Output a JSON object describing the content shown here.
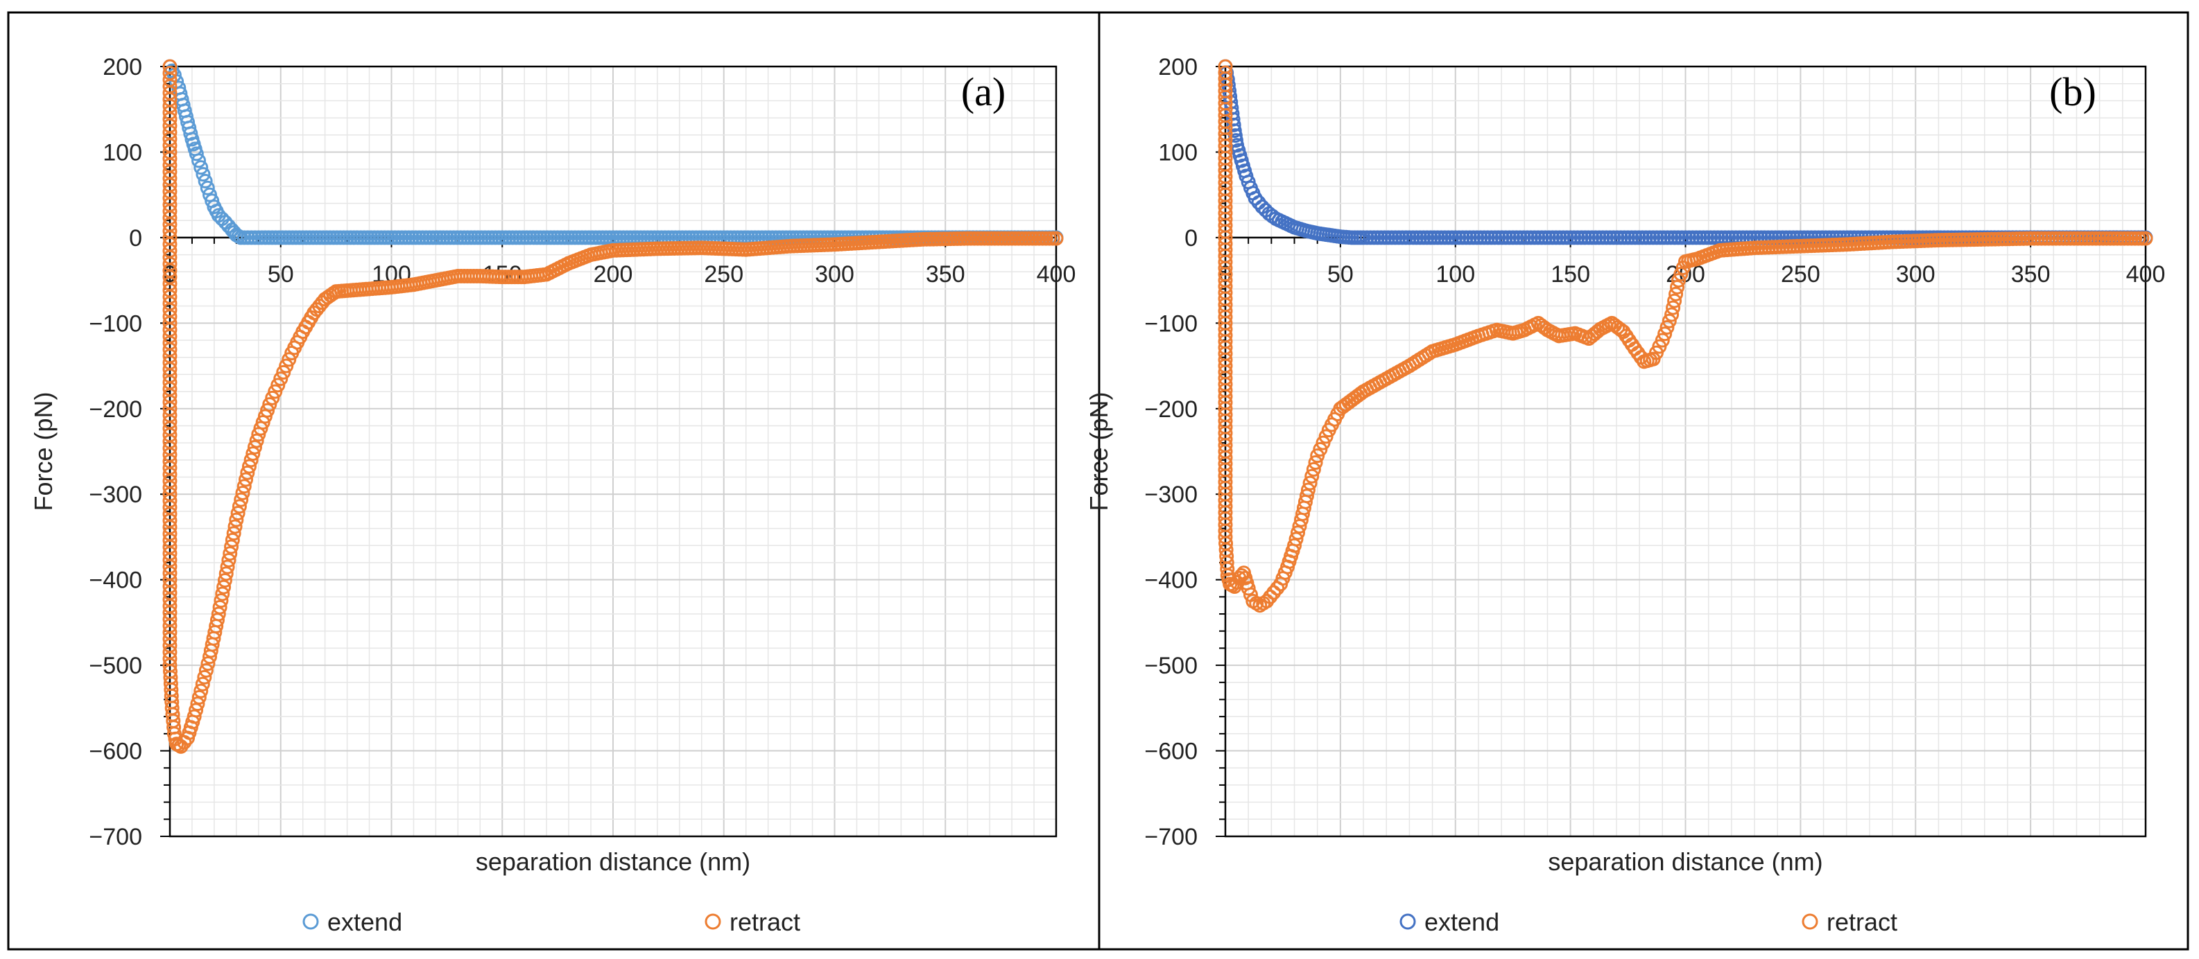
{
  "chart_data": [
    {
      "type": "scatter",
      "panel_label": "(a)",
      "title": "",
      "xlabel": "separation distance (nm)",
      "ylabel": "Force (pN)",
      "xlim": [
        0,
        400
      ],
      "ylim": [
        -700,
        200
      ],
      "x_ticks": [
        "0",
        "50",
        "100",
        "150",
        "200",
        "250",
        "300",
        "350",
        "400"
      ],
      "y_ticks": [
        "200",
        "100",
        "0",
        "−100",
        "−200",
        "−300",
        "−400",
        "−500",
        "−600",
        "−700"
      ],
      "grid": true,
      "legend_position": "bottom",
      "series": [
        {
          "name": "extend",
          "color": "#5b9bd5",
          "points": [
            [
              0,
              200
            ],
            [
              2,
              190
            ],
            [
              4,
              175
            ],
            [
              6,
              155
            ],
            [
              8,
              135
            ],
            [
              10,
              115
            ],
            [
              12,
              98
            ],
            [
              14,
              82
            ],
            [
              16,
              66
            ],
            [
              18,
              50
            ],
            [
              20,
              36
            ],
            [
              22,
              26
            ],
            [
              25,
              18
            ],
            [
              28,
              9
            ],
            [
              30,
              3
            ],
            [
              32,
              0
            ],
            [
              40,
              0
            ],
            [
              60,
              0
            ],
            [
              80,
              0
            ],
            [
              100,
              0
            ],
            [
              150,
              0
            ],
            [
              200,
              0
            ],
            [
              250,
              0
            ],
            [
              300,
              0
            ],
            [
              350,
              0
            ],
            [
              400,
              0
            ]
          ]
        },
        {
          "name": "retract",
          "color": "#ed7d31",
          "points": [
            [
              0,
              200
            ],
            [
              0,
              100
            ],
            [
              0,
              0
            ],
            [
              0,
              -100
            ],
            [
              0,
              -200
            ],
            [
              0,
              -300
            ],
            [
              0,
              -400
            ],
            [
              0,
              -500
            ],
            [
              1,
              -550
            ],
            [
              2,
              -580
            ],
            [
              3,
              -592
            ],
            [
              5,
              -595
            ],
            [
              8,
              -585
            ],
            [
              11,
              -560
            ],
            [
              14,
              -530
            ],
            [
              18,
              -490
            ],
            [
              22,
              -440
            ],
            [
              26,
              -385
            ],
            [
              30,
              -330
            ],
            [
              35,
              -275
            ],
            [
              40,
              -230
            ],
            [
              45,
              -195
            ],
            [
              50,
              -165
            ],
            [
              55,
              -135
            ],
            [
              60,
              -110
            ],
            [
              65,
              -88
            ],
            [
              70,
              -72
            ],
            [
              75,
              -63
            ],
            [
              80,
              -62
            ],
            [
              90,
              -60
            ],
            [
              100,
              -58
            ],
            [
              110,
              -55
            ],
            [
              120,
              -50
            ],
            [
              130,
              -45
            ],
            [
              140,
              -45
            ],
            [
              150,
              -46
            ],
            [
              160,
              -46
            ],
            [
              170,
              -43
            ],
            [
              180,
              -30
            ],
            [
              190,
              -20
            ],
            [
              200,
              -15
            ],
            [
              220,
              -13
            ],
            [
              240,
              -12
            ],
            [
              260,
              -14
            ],
            [
              280,
              -10
            ],
            [
              300,
              -8
            ],
            [
              320,
              -5
            ],
            [
              340,
              -2
            ],
            [
              360,
              -1
            ],
            [
              380,
              -1
            ],
            [
              400,
              -1
            ]
          ]
        }
      ]
    },
    {
      "type": "scatter",
      "panel_label": "(b)",
      "title": "",
      "xlabel": "separation distance (nm)",
      "ylabel": "Force (pN)",
      "xlim": [
        0,
        400
      ],
      "ylim": [
        -700,
        200
      ],
      "x_ticks": [
        "0",
        "50",
        "100",
        "150",
        "200",
        "250",
        "300",
        "350",
        "400"
      ],
      "y_ticks": [
        "200",
        "100",
        "0",
        "−100",
        "−200",
        "−300",
        "−400",
        "−500",
        "−600",
        "−700"
      ],
      "grid": true,
      "legend_position": "bottom",
      "series": [
        {
          "name": "extend",
          "color": "#4472c4",
          "points": [
            [
              0,
              200
            ],
            [
              1,
              185
            ],
            [
              2,
              165
            ],
            [
              3,
              145
            ],
            [
              4,
              125
            ],
            [
              5,
              108
            ],
            [
              7,
              90
            ],
            [
              9,
              72
            ],
            [
              11,
              58
            ],
            [
              13,
              46
            ],
            [
              16,
              36
            ],
            [
              19,
              28
            ],
            [
              22,
              22
            ],
            [
              26,
              17
            ],
            [
              30,
              12
            ],
            [
              35,
              8
            ],
            [
              40,
              5
            ],
            [
              45,
              3
            ],
            [
              50,
              1
            ],
            [
              55,
              0
            ],
            [
              60,
              0
            ],
            [
              80,
              0
            ],
            [
              100,
              0
            ],
            [
              150,
              0
            ],
            [
              200,
              0
            ],
            [
              250,
              0
            ],
            [
              300,
              0
            ],
            [
              350,
              0
            ],
            [
              400,
              0
            ]
          ]
        },
        {
          "name": "retract",
          "color": "#ed7d31",
          "points": [
            [
              0,
              200
            ],
            [
              0,
              150
            ],
            [
              0,
              100
            ],
            [
              0,
              50
            ],
            [
              0,
              0
            ],
            [
              0,
              -50
            ],
            [
              0,
              -100
            ],
            [
              0,
              -150
            ],
            [
              0,
              -200
            ],
            [
              0,
              -250
            ],
            [
              0,
              -300
            ],
            [
              0,
              -350
            ],
            [
              1,
              -395
            ],
            [
              2,
              -405
            ],
            [
              4,
              -408
            ],
            [
              6,
              -398
            ],
            [
              8,
              -392
            ],
            [
              10,
              -410
            ],
            [
              12,
              -425
            ],
            [
              15,
              -430
            ],
            [
              18,
              -425
            ],
            [
              21,
              -415
            ],
            [
              24,
              -405
            ],
            [
              27,
              -385
            ],
            [
              30,
              -360
            ],
            [
              33,
              -330
            ],
            [
              36,
              -295
            ],
            [
              40,
              -255
            ],
            [
              45,
              -225
            ],
            [
              50,
              -200
            ],
            [
              55,
              -190
            ],
            [
              60,
              -180
            ],
            [
              70,
              -165
            ],
            [
              80,
              -150
            ],
            [
              90,
              -133
            ],
            [
              100,
              -125
            ],
            [
              110,
              -115
            ],
            [
              118,
              -108
            ],
            [
              125,
              -112
            ],
            [
              130,
              -108
            ],
            [
              136,
              -100
            ],
            [
              140,
              -108
            ],
            [
              145,
              -115
            ],
            [
              152,
              -112
            ],
            [
              158,
              -118
            ],
            [
              163,
              -107
            ],
            [
              168,
              -100
            ],
            [
              173,
              -110
            ],
            [
              178,
              -130
            ],
            [
              182,
              -145
            ],
            [
              186,
              -142
            ],
            [
              190,
              -120
            ],
            [
              194,
              -90
            ],
            [
              197,
              -50
            ],
            [
              200,
              -28
            ],
            [
              205,
              -25
            ],
            [
              215,
              -15
            ],
            [
              230,
              -12
            ],
            [
              250,
              -10
            ],
            [
              270,
              -8
            ],
            [
              290,
              -5
            ],
            [
              310,
              -3
            ],
            [
              330,
              -2
            ],
            [
              350,
              -1
            ],
            [
              380,
              -1
            ],
            [
              400,
              -1
            ]
          ]
        }
      ]
    }
  ]
}
